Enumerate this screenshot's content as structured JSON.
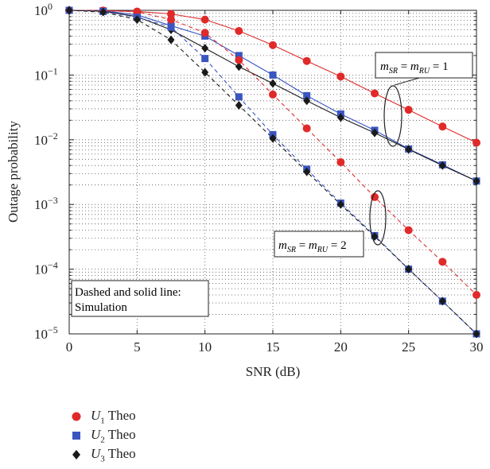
{
  "chart_data": {
    "type": "line",
    "xlabel": "SNR (dB)",
    "ylabel": "Outage probability",
    "xlim": [
      0,
      30
    ],
    "ylim": [
      1e-05,
      1
    ],
    "yscale": "log",
    "grid": true,
    "x_ticks": [
      "0",
      "5",
      "10",
      "15",
      "20",
      "25",
      "30"
    ],
    "y_ticks": [
      {
        "mant": "10",
        "exp": "0"
      },
      {
        "mant": "10",
        "exp": "−1"
      },
      {
        "mant": "10",
        "exp": "−2"
      },
      {
        "mant": "10",
        "exp": "−3"
      },
      {
        "mant": "10",
        "exp": "−4"
      },
      {
        "mant": "10",
        "exp": "−5"
      }
    ],
    "x": [
      0,
      2.5,
      5,
      7.5,
      10,
      12.5,
      15,
      17.5,
      20,
      22.5,
      25,
      27.5,
      30
    ],
    "series": [
      {
        "name": "U1 Theo",
        "label_main": "U",
        "label_sub": "1",
        "label_rest": " Theo",
        "case": "m=1",
        "line": "solid",
        "marker": "circle",
        "color": "#e02a2a",
        "values": [
          1.0,
          0.99,
          0.96,
          0.88,
          0.72,
          0.48,
          0.29,
          0.165,
          0.095,
          0.052,
          0.029,
          0.016,
          0.009
        ]
      },
      {
        "name": "U2 Theo",
        "label_main": "U",
        "label_sub": "2",
        "label_rest": " Theo",
        "case": "m=1",
        "line": "solid",
        "marker": "square",
        "color": "#3a55c0",
        "values": [
          1.0,
          0.98,
          0.85,
          0.58,
          0.4,
          0.2,
          0.1,
          0.048,
          0.025,
          0.014,
          0.0072,
          0.0041,
          0.0023
        ]
      },
      {
        "name": "U3 Theo",
        "label_main": "U",
        "label_sub": "3",
        "label_rest": " Theo",
        "case": "m=1",
        "line": "solid",
        "marker": "diamond",
        "color": "#1a1a1a",
        "values": [
          1.0,
          0.97,
          0.8,
          0.5,
          0.26,
          0.135,
          0.074,
          0.04,
          0.022,
          0.0128,
          0.0071,
          0.004,
          0.0023
        ]
      },
      {
        "name": "U1 Theo",
        "case": "m=2",
        "line": "dashed",
        "marker": "circle",
        "color": "#e02a2a",
        "values": [
          1.0,
          0.99,
          0.95,
          0.72,
          0.45,
          0.17,
          0.05,
          0.015,
          0.0045,
          0.0013,
          0.0004,
          0.00013,
          4e-05
        ]
      },
      {
        "name": "U2 Theo",
        "case": "m=2",
        "line": "dashed",
        "marker": "square",
        "color": "#3a55c0",
        "values": [
          1.0,
          0.96,
          0.78,
          0.55,
          0.18,
          0.046,
          0.012,
          0.0035,
          0.00105,
          0.00033,
          0.0001,
          3.2e-05,
          1e-05
        ]
      },
      {
        "name": "U3 Theo",
        "case": "m=2",
        "line": "dashed",
        "marker": "diamond",
        "color": "#1a1a1a",
        "values": [
          1.0,
          0.94,
          0.72,
          0.35,
          0.11,
          0.034,
          0.0105,
          0.0032,
          0.001,
          0.00032,
          0.0001,
          3.2e-05,
          1e-05
        ]
      }
    ],
    "annotations": {
      "m1": {
        "m": "m",
        "sr": "SR",
        "eq": " = ",
        "ru": "RU",
        "val": " = 1"
      },
      "m2": {
        "m": "m",
        "sr": "SR",
        "eq": " = ",
        "ru": "RU",
        "val": " = 2"
      },
      "note_line1": "Dashed and solid line:",
      "note_line2": "Simulation"
    }
  }
}
